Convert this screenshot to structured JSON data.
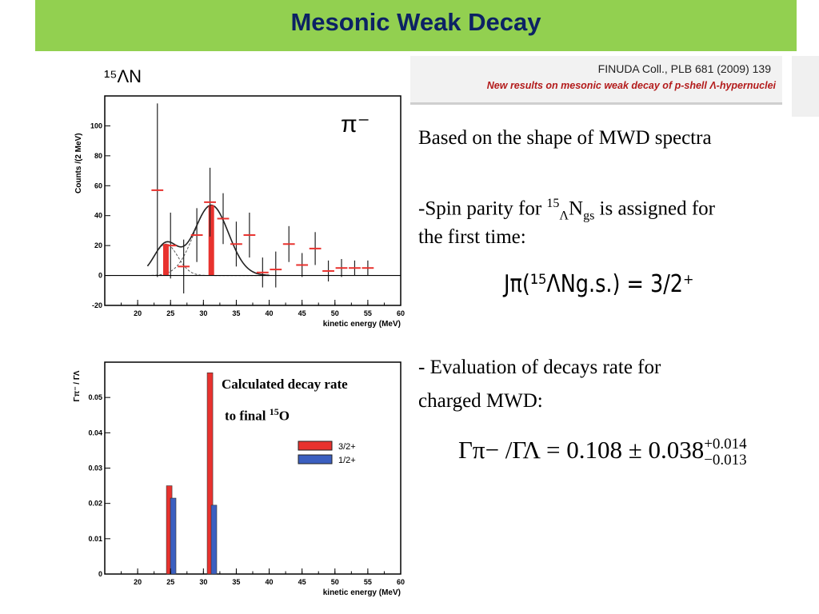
{
  "slide": {
    "title": "Mesonic  Weak Decay"
  },
  "reference": {
    "citation": "FINUDA Coll., PLB 681 (2009) 139",
    "paper_title": "New results on mesonic weak decay of p-shell Λ-hypernuclei"
  },
  "text": {
    "line1": "Based on the shape of MWD spectra",
    "spin_prefix": "-Spin parity for ",
    "spin_mass": "15",
    "spin_sub_lambda": "Λ",
    "spin_element": "N",
    "spin_gs": "gs",
    "spin_suffix": " is assigned for",
    "spin_line2": "the first time:",
    "jpi_formula": "Jπ(¹⁵ΛNg.s.) = 3/2⁺",
    "eval_line1": "- Evaluation of decays rate for",
    "eval_line2": "charged MWD:",
    "ratio_lhs": "Γπ− /ΓΛ",
    "ratio_value": "= 0.108 ± 0.038",
    "ratio_up": "+0.014",
    "ratio_down": "−0.013"
  },
  "annotation": {
    "line1": "Calculated decay rate",
    "line2_prefix": "to final ",
    "line2_mass": "15",
    "line2_element": "O"
  },
  "colors": {
    "title_bar": "#92d050",
    "title_text": "#0c2264",
    "red": "#e8322e",
    "blue": "#3b5fc0"
  },
  "chart_data": [
    {
      "type": "scatter",
      "label": "¹⁵ΛN",
      "particle": "π⁻",
      "xlabel": "kinetic energy (MeV)",
      "ylabel": "Counts /(2 MeV)",
      "xlim": [
        15,
        60
      ],
      "ylim": [
        -20,
        120
      ],
      "xticks": [
        20,
        25,
        30,
        35,
        40,
        45,
        50,
        55,
        60
      ],
      "yticks": [
        -20,
        0,
        20,
        40,
        60,
        80,
        100
      ],
      "points": [
        {
          "x": 23,
          "y": 57,
          "err": 58
        },
        {
          "x": 25,
          "y": 20,
          "err": 22
        },
        {
          "x": 27,
          "y": 6,
          "err": 18
        },
        {
          "x": 29,
          "y": 27,
          "err": 18
        },
        {
          "x": 31,
          "y": 49,
          "err": 23
        },
        {
          "x": 33,
          "y": 38,
          "err": 17
        },
        {
          "x": 35,
          "y": 21,
          "err": 15
        },
        {
          "x": 37,
          "y": 27,
          "err": 15
        },
        {
          "x": 39,
          "y": 2,
          "err": 10
        },
        {
          "x": 41,
          "y": 4,
          "err": 12
        },
        {
          "x": 43,
          "y": 21,
          "err": 12
        },
        {
          "x": 45,
          "y": 7,
          "err": 8
        },
        {
          "x": 47,
          "y": 18,
          "err": 11
        },
        {
          "x": 49,
          "y": 3,
          "err": 7
        },
        {
          "x": 51,
          "y": 5,
          "err": 6
        },
        {
          "x": 53,
          "y": 5,
          "err": 5
        },
        {
          "x": 55,
          "y": 5,
          "err": 5
        }
      ],
      "bars": [
        {
          "x": 24.3,
          "y": 21
        },
        {
          "x": 31.2,
          "y": 47
        }
      ],
      "fit": {
        "gaussians": [
          {
            "mu": 24.3,
            "sigma": 1.8,
            "amp": 21
          },
          {
            "mu": 31.2,
            "sigma": 2.6,
            "amp": 47
          }
        ]
      }
    },
    {
      "type": "bar",
      "xlabel": "kinetic energy (MeV)",
      "ylabel": "Γπ⁻ / ΓΛ",
      "xlim": [
        15,
        60
      ],
      "ylim": [
        0,
        0.06
      ],
      "xticks": [
        20,
        25,
        30,
        35,
        40,
        45,
        50,
        55,
        60
      ],
      "yticks": [
        0.01,
        0.02,
        0.03,
        0.04,
        0.05
      ],
      "series": [
        {
          "name": "3/2+",
          "points": [
            {
              "x": 24.8,
              "y": 0.025
            },
            {
              "x": 31.0,
              "y": 0.057
            }
          ]
        },
        {
          "name": "1/2+",
          "points": [
            {
              "x": 25.4,
              "y": 0.0215
            },
            {
              "x": 31.6,
              "y": 0.0195
            }
          ]
        }
      ]
    }
  ]
}
